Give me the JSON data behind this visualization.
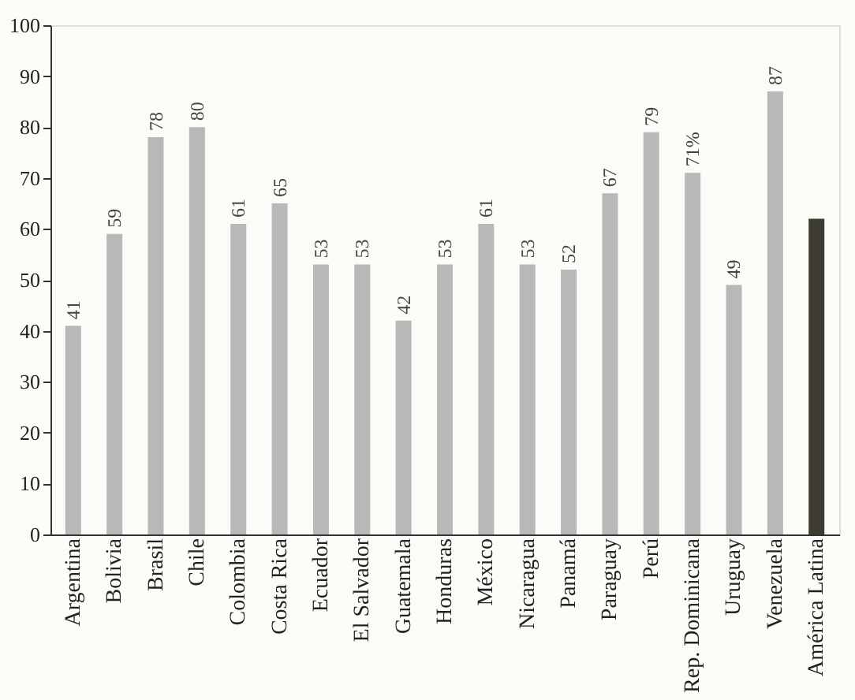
{
  "chart_data": {
    "type": "bar",
    "categories": [
      "Argentina",
      "Bolivia",
      "Brasil",
      "Chile",
      "Colombia",
      "Costa Rica",
      "Ecuador",
      "El Salvador",
      "Guatemala",
      "Honduras",
      "México",
      "Nicaragua",
      "Panamá",
      "Paraguay",
      "Perú",
      "Rep. Dominicana",
      "Uruguay",
      "Venezuela",
      "América Latina"
    ],
    "values": [
      41,
      59,
      78,
      80,
      61,
      65,
      53,
      53,
      42,
      53,
      61,
      53,
      52,
      67,
      79,
      71,
      49,
      87,
      62
    ],
    "colors": [
      "#b8b8b8",
      "#b8b8b8",
      "#b8b8b8",
      "#b8b8b8",
      "#b8b8b8",
      "#b8b8b8",
      "#b8b8b8",
      "#b8b8b8",
      "#b8b8b8",
      "#b8b8b8",
      "#b8b8b8",
      "#b8b8b8",
      "#b8b8b8",
      "#b8b8b8",
      "#b8b8b8",
      "#b8b8b8",
      "#b8b8b8",
      "#b8b8b8",
      "#3d3b32"
    ],
    "value_labels": [
      "41",
      "59",
      "78",
      "80",
      "61",
      "65",
      "53",
      "53",
      "42",
      "53",
      "61",
      "53",
      "52",
      "67",
      "79",
      "71%",
      "49",
      "87",
      null
    ],
    "ylim": [
      0,
      100
    ],
    "yticks": [
      0,
      10,
      20,
      30,
      40,
      50,
      60,
      70,
      80,
      90,
      100
    ],
    "grid": false
  }
}
